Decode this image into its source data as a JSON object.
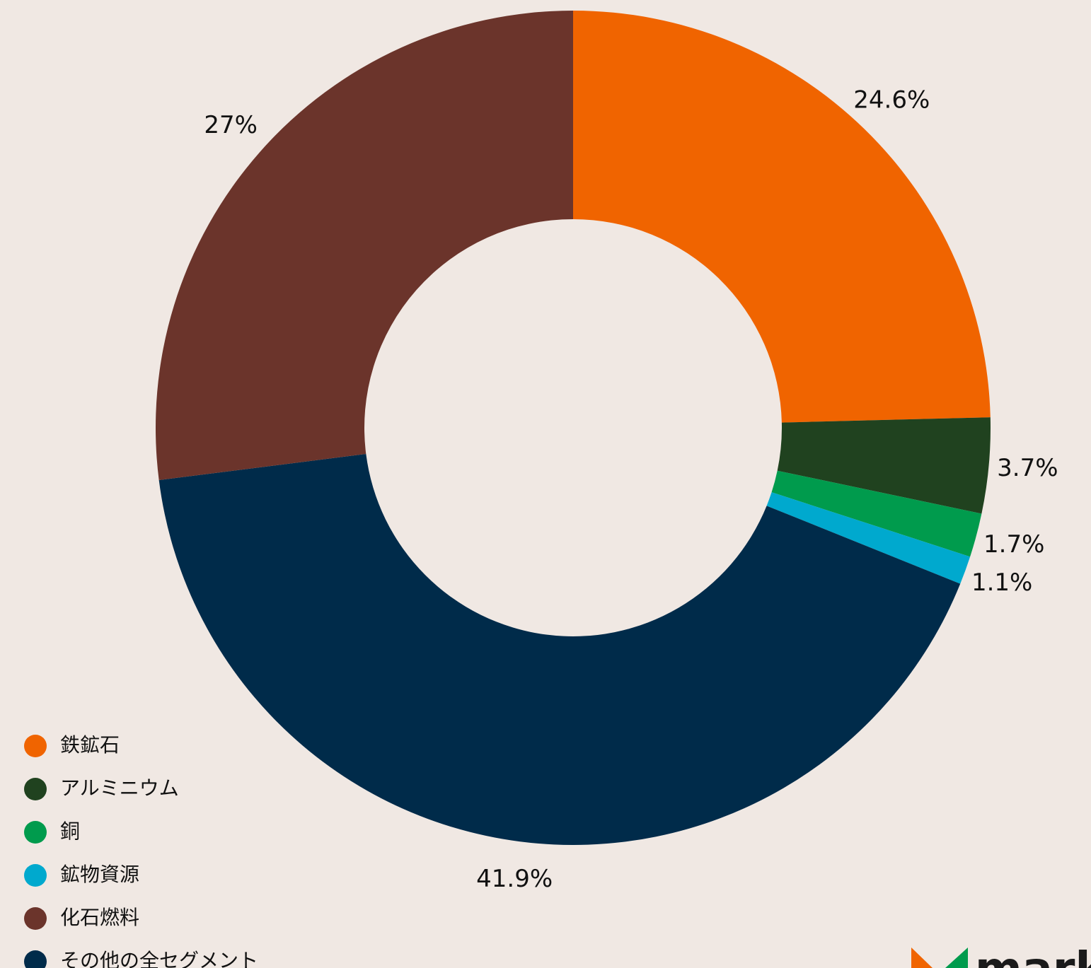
{
  "chart_data": {
    "type": "donut",
    "categories": [
      "鉄鉱石",
      "アルミニウム",
      "銅",
      "鉱物資源",
      "化石燃料",
      "その他の全セグメント"
    ],
    "values": [
      24.6,
      3.7,
      1.7,
      1.1,
      27,
      41.9
    ],
    "value_labels": [
      "24.6%",
      "3.7%",
      "1.7%",
      "1.1%",
      "27%",
      "41.9%"
    ],
    "colors": [
      "#f06400",
      "#20421f",
      "#009b4d",
      "#00a9ce",
      "#6b342b",
      "#002b4a"
    ],
    "legend": "bottom-left"
  },
  "logo": "mark"
}
